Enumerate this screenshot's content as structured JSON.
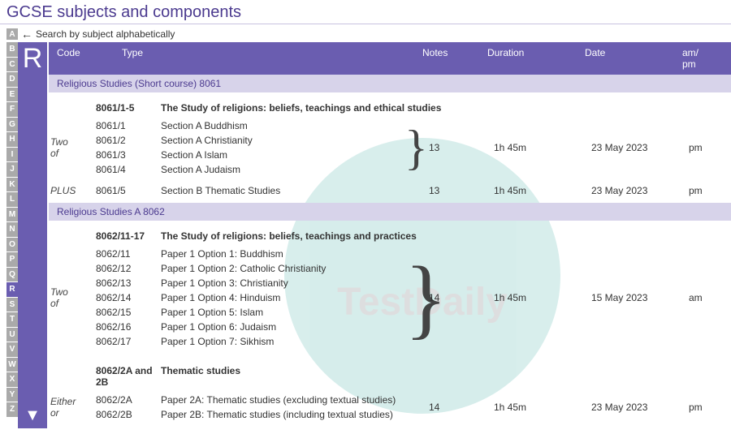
{
  "page": {
    "title": "GCSE subjects and components",
    "search_hint": "Search by subject alphabetically",
    "search_badge": "A",
    "watermark": "TestDaily"
  },
  "alpha": {
    "letters": [
      "B",
      "C",
      "D",
      "E",
      "F",
      "G",
      "H",
      "I",
      "J",
      "K",
      "L",
      "M",
      "N",
      "O",
      "P",
      "Q",
      "R",
      "S",
      "T",
      "U",
      "V",
      "W",
      "X",
      "Y",
      "Z"
    ],
    "active": "R"
  },
  "columns": {
    "code": "Code",
    "type": "Type",
    "notes": "Notes",
    "duration": "Duration",
    "date": "Date",
    "ampm": "am/\npm"
  },
  "courses": [
    {
      "heading": "Religious Studies (Short course)  8061",
      "sections": [
        {
          "code": "8061/1-5",
          "title": "The Study of religions: beliefs, teachings and ethical studies",
          "selector": "Two of",
          "brace": true,
          "options": [
            {
              "code": "8061/1",
              "type": "Section A Buddhism"
            },
            {
              "code": "8061/2",
              "type": "Section A Christianity"
            },
            {
              "code": "8061/3",
              "type": "Section A Islam"
            },
            {
              "code": "8061/4",
              "type": "Section A Judaism"
            }
          ],
          "notes": "13",
          "duration": "1h 45m",
          "date": "23 May 2023",
          "ampm": "pm",
          "extra_row": {
            "selector": "PLUS",
            "code": "8061/5",
            "type": "Section B Thematic Studies",
            "notes": "13",
            "duration": "1h 45m",
            "date": "23 May 2023",
            "ampm": "pm"
          }
        }
      ]
    },
    {
      "heading": "Religious Studies A  8062",
      "sections": [
        {
          "code": "8062/11-17",
          "title": "The Study of religions: beliefs, teachings and practices",
          "selector": "Two of",
          "brace": true,
          "options": [
            {
              "code": "8062/11",
              "type": "Paper 1 Option 1: Buddhism"
            },
            {
              "code": "8062/12",
              "type": "Paper 1 Option 2: Catholic Christianity"
            },
            {
              "code": "8062/13",
              "type": "Paper 1 Option 3: Christianity"
            },
            {
              "code": "8062/14",
              "type": "Paper 1 Option 4: Hinduism"
            },
            {
              "code": "8062/15",
              "type": "Paper 1 Option 5: Islam"
            },
            {
              "code": "8062/16",
              "type": "Paper 1 Option 6: Judaism"
            },
            {
              "code": "8062/17",
              "type": "Paper 1 Option 7: Sikhism"
            }
          ],
          "notes": "14",
          "duration": "1h 45m",
          "date": "15 May 2023",
          "ampm": "am"
        },
        {
          "code": "8062/2A and 2B",
          "title": "Thematic studies",
          "selector": "Either or",
          "brace": false,
          "options": [
            {
              "code": "8062/2A",
              "type": "Paper 2A: Thematic studies (excluding textual studies)"
            },
            {
              "code": "8062/2B",
              "type": "Paper 2B: Thematic studies (including textual studies)"
            }
          ],
          "notes": "14",
          "duration": "1h 45m",
          "date": "23 May 2023",
          "ampm": "pm"
        }
      ]
    }
  ],
  "style": {
    "accent": "#6a5db0",
    "course_bar_bg": "#d7d3ea",
    "title_color": "#4b3a8f",
    "watermark_circle": "#3aa9a0"
  }
}
